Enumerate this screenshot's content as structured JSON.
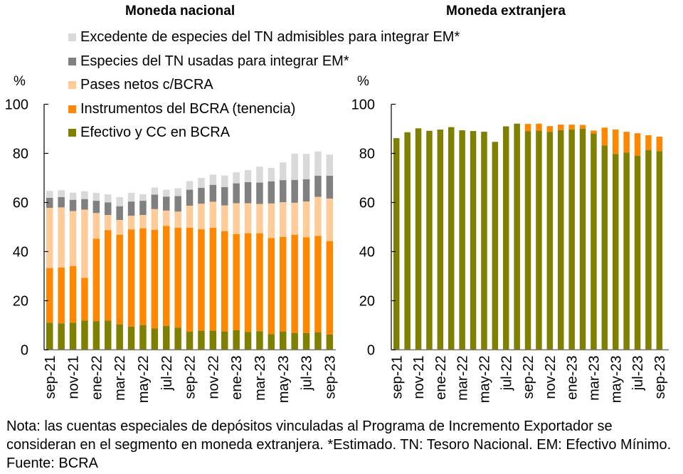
{
  "note": "Nota: las cuentas especiales de depósitos vinculadas al Programa de Incremento Exportador se consideran en el segmento en moneda extranjera. *Estimado. TN: Tesoro Nacional. EM: Efectivo Mínimo. Fuente: BCRA",
  "legend": [
    {
      "label": "Excedente de especies del TN admisibles para integrar EM*",
      "color": "#D9D9D9"
    },
    {
      "label": "Especies del TN usadas para integrar EM*",
      "color": "#808080"
    },
    {
      "label": "Pases netos c/BCRA",
      "color": "#FFCC99"
    },
    {
      "label": "Instrumentos del BCRA (tenencia)",
      "color": "#FF8700"
    },
    {
      "label": "Efectivo y CC en BCRA",
      "color": "#808000"
    }
  ],
  "chart_data": [
    {
      "type": "bar",
      "stacked": true,
      "title": "Moneda nacional",
      "ylabel": "%",
      "xlabel": "",
      "ylim": [
        0,
        100
      ],
      "yticks": [
        0,
        20,
        40,
        60,
        80,
        100
      ],
      "categories": [
        "sep-21",
        "oct-21",
        "nov-21",
        "dic-21",
        "ene-22",
        "feb-22",
        "mar-22",
        "abr-22",
        "may-22",
        "jun-22",
        "jul-22",
        "ago-22",
        "sep-22",
        "oct-22",
        "nov-22",
        "dic-22",
        "ene-23",
        "feb-23",
        "mar-23",
        "abr-23",
        "may-23",
        "jun-23",
        "jul-23",
        "ago-23",
        "sep-23"
      ],
      "xtick_labels": [
        "sep-21",
        "nov-21",
        "ene-22",
        "mar-22",
        "may-22",
        "jul-22",
        "sep-22",
        "nov-22",
        "ene-23",
        "mar-23",
        "may-23",
        "jul-23",
        "sep-23"
      ],
      "legend_position": "top",
      "series": [
        {
          "name": "Efectivo y CC en BCRA",
          "color": "#808000",
          "values": [
            11.1,
            10.8,
            11.1,
            11.9,
            11.7,
            11.9,
            10.4,
            9.5,
            10.1,
            8.7,
            9.8,
            9.0,
            7.4,
            7.8,
            7.8,
            7.5,
            8.0,
            7.3,
            7.6,
            6.4,
            7.5,
            6.9,
            6.9,
            7.2,
            6.3
          ]
        },
        {
          "name": "Instrumentos del BCRA (tenencia)",
          "color": "#FF8700",
          "values": [
            22.2,
            22.7,
            23.0,
            17.4,
            33.6,
            36.8,
            36.5,
            39.5,
            39.4,
            40.2,
            40.7,
            40.7,
            42.3,
            41.3,
            41.9,
            40.8,
            39.1,
            40.2,
            39.9,
            39.1,
            38.5,
            40.0,
            38.9,
            39.2,
            38.0
          ]
        },
        {
          "name": "Pases netos c/BCRA",
          "color": "#FFCC99",
          "values": [
            24.5,
            24.5,
            22.4,
            27.8,
            10.4,
            6.2,
            6.0,
            5.6,
            5.4,
            8.4,
            6.2,
            6.6,
            9.0,
            10.4,
            10.6,
            10.5,
            12.6,
            12.2,
            11.9,
            14.1,
            14.1,
            13.0,
            14.6,
            15.9,
            17.3
          ]
        },
        {
          "name": "Especies del TN usadas para integrar EM*",
          "color": "#808080",
          "values": [
            4.1,
            4.2,
            4.6,
            4.3,
            5.0,
            5.1,
            5.6,
            5.8,
            5.8,
            5.9,
            5.7,
            6.3,
            6.5,
            6.5,
            6.9,
            7.5,
            8.1,
            8.6,
            8.7,
            9.0,
            9.0,
            9.3,
            9.1,
            8.6,
            9.3
          ]
        },
        {
          "name": "Excedente de especies del TN admisibles para integrar EM*",
          "color": "#D9D9D9",
          "values": [
            2.8,
            2.8,
            2.9,
            3.2,
            3.2,
            3.3,
            3.7,
            3.5,
            2.7,
            2.9,
            2.8,
            3.2,
            3.5,
            4.0,
            4.2,
            4.7,
            4.5,
            4.9,
            6.5,
            5.5,
            7.2,
            10.7,
            10.3,
            9.9,
            8.6
          ]
        }
      ]
    },
    {
      "type": "bar",
      "stacked": true,
      "title": "Moneda extranjera",
      "ylabel": "%",
      "xlabel": "",
      "ylim": [
        0,
        100
      ],
      "yticks": [
        0,
        20,
        40,
        60,
        80,
        100
      ],
      "categories": [
        "sep-21",
        "oct-21",
        "nov-21",
        "dic-21",
        "ene-22",
        "feb-22",
        "mar-22",
        "abr-22",
        "may-22",
        "jun-22",
        "jul-22",
        "ago-22",
        "sep-22",
        "oct-22",
        "nov-22",
        "dic-22",
        "ene-23",
        "feb-23",
        "mar-23",
        "abr-23",
        "may-23",
        "jun-23",
        "jul-23",
        "ago-23",
        "sep-23"
      ],
      "xtick_labels": [
        "sep-21",
        "nov-21",
        "ene-22",
        "mar-22",
        "may-22",
        "jul-22",
        "sep-22",
        "nov-22",
        "ene-23",
        "mar-23",
        "may-23",
        "jul-23",
        "sep-23"
      ],
      "series": [
        {
          "name": "Efectivo y CC en BCRA",
          "color": "#808000",
          "values": [
            86.2,
            88.6,
            90.2,
            89.2,
            89.7,
            90.7,
            89.4,
            89.1,
            88.8,
            84.7,
            91.0,
            92.1,
            89.1,
            89.3,
            88.8,
            89.5,
            89.8,
            90.1,
            88.1,
            83.2,
            79.8,
            80.3,
            79.1,
            81.4,
            80.9
          ]
        },
        {
          "name": "Instrumentos del BCRA (tenencia)",
          "color": "#FF8700",
          "values": [
            0,
            0,
            0,
            0,
            0,
            0,
            0,
            0,
            0,
            0,
            0,
            0,
            2.9,
            2.8,
            2.3,
            2.2,
            1.9,
            1.5,
            1.2,
            7.3,
            9.9,
            8.5,
            9.1,
            6.0,
            5.9
          ]
        }
      ]
    }
  ]
}
